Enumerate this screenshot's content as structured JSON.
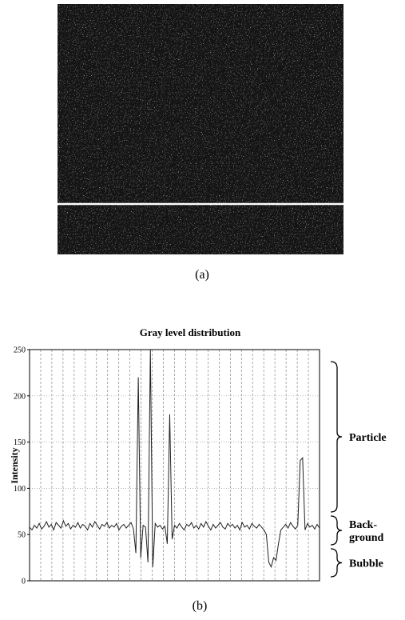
{
  "captions": [
    "(a)",
    "(b)"
  ],
  "chart_data": {
    "type": "line",
    "title": "Gray level distribution",
    "y_label": "Intensity",
    "values": [
      58,
      55,
      60,
      57,
      62,
      56,
      59,
      64,
      58,
      61,
      55,
      63,
      60,
      57,
      65,
      59,
      62,
      56,
      60,
      58,
      63,
      57,
      61,
      59,
      55,
      62,
      58,
      64,
      60,
      56,
      61,
      59,
      63,
      57,
      60,
      58,
      62,
      55,
      59,
      61,
      57,
      60,
      63,
      56,
      30,
      220,
      25,
      60,
      58,
      20,
      250,
      15,
      62,
      58,
      60,
      56,
      59,
      40,
      180,
      45,
      60,
      57,
      62,
      58,
      55,
      61,
      59,
      63,
      57,
      60,
      56,
      62,
      58,
      64,
      59,
      55,
      61,
      57,
      60,
      63,
      58,
      56,
      62,
      59,
      61,
      57,
      60,
      55,
      63,
      58,
      60,
      56,
      62,
      59,
      57,
      61,
      58,
      55,
      50,
      20,
      15,
      25,
      22,
      40,
      55,
      58,
      61,
      57,
      63,
      59,
      56,
      60,
      130,
      133,
      55,
      62,
      58,
      60,
      56,
      61,
      57
    ],
    "color": "#222222",
    "ylim": [
      0,
      250
    ],
    "yticks": [
      0,
      50,
      100,
      150,
      200,
      250
    ],
    "grid": true,
    "annotations": [
      [
        "Particle"
      ],
      [
        "Back-",
        "ground"
      ],
      [
        "Bubble"
      ]
    ]
  }
}
